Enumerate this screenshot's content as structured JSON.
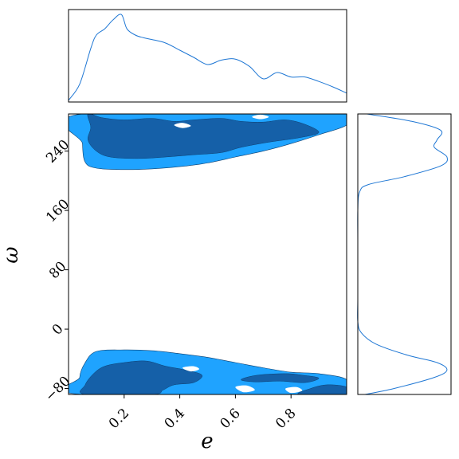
{
  "chart_data": {
    "type": "contour",
    "layout": "corner-plot",
    "xlabel": "e",
    "ylabel": "ω",
    "xlim": [
      0.0,
      1.0
    ],
    "ylim": [
      -88,
      290
    ],
    "xticks": [
      0.2,
      0.4,
      0.6,
      0.8
    ],
    "xtick_labels": [
      "0.2",
      "0.4",
      "0.6",
      "0.8"
    ],
    "yticks": [
      -80,
      0,
      80,
      160,
      240
    ],
    "ytick_labels": [
      "−80",
      "0",
      "80",
      "160",
      "240"
    ],
    "colors": {
      "outer_contour": "#1fa3ff",
      "inner_contour": "#1560a8",
      "marginal_line": "#1f77d4",
      "frame": "#000000"
    },
    "marginal_x": {
      "x": [
        0.0,
        0.04,
        0.08,
        0.1,
        0.13,
        0.16,
        0.19,
        0.21,
        0.24,
        0.27,
        0.3,
        0.35,
        0.4,
        0.45,
        0.5,
        0.55,
        0.6,
        0.65,
        0.7,
        0.75,
        0.8,
        0.85,
        0.9,
        0.95,
        1.0
      ],
      "y": [
        0.02,
        0.2,
        0.6,
        0.75,
        0.82,
        0.92,
        0.98,
        0.82,
        0.75,
        0.72,
        0.7,
        0.66,
        0.58,
        0.5,
        0.42,
        0.47,
        0.48,
        0.4,
        0.26,
        0.33,
        0.28,
        0.28,
        0.23,
        0.17,
        0.1
      ]
    },
    "marginal_y": {
      "y": [
        -88,
        -80,
        -65,
        -55,
        -45,
        -35,
        -20,
        -5,
        10,
        40,
        80,
        120,
        160,
        185,
        195,
        205,
        220,
        232,
        245,
        255,
        268,
        280,
        290
      ],
      "x": [
        0.08,
        0.4,
        0.85,
        0.99,
        0.88,
        0.55,
        0.2,
        0.04,
        0.0,
        0.0,
        0.0,
        0.0,
        0.0,
        0.02,
        0.12,
        0.5,
        0.92,
        0.99,
        0.85,
        0.88,
        0.92,
        0.6,
        0.1
      ]
    },
    "contours": [
      {
        "level": "outer",
        "polygon": [
          [
            0.05,
            290
          ],
          [
            1.0,
            290
          ],
          [
            1.0,
            275
          ],
          [
            0.9,
            262
          ],
          [
            0.8,
            250
          ],
          [
            0.7,
            240
          ],
          [
            0.6,
            232
          ],
          [
            0.5,
            224
          ],
          [
            0.4,
            219
          ],
          [
            0.3,
            216
          ],
          [
            0.2,
            215
          ],
          [
            0.1,
            217
          ],
          [
            0.06,
            225
          ],
          [
            0.05,
            250
          ]
        ]
      },
      {
        "level": "outer",
        "polygon": [
          [
            0.05,
            -88
          ],
          [
            1.0,
            -88
          ],
          [
            1.0,
            -68
          ],
          [
            0.9,
            -60
          ],
          [
            0.8,
            -58
          ],
          [
            0.7,
            -52
          ],
          [
            0.6,
            -45
          ],
          [
            0.5,
            -38
          ],
          [
            0.4,
            -33
          ],
          [
            0.3,
            -29
          ],
          [
            0.2,
            -28
          ],
          [
            0.1,
            -30
          ],
          [
            0.06,
            -45
          ],
          [
            0.04,
            -65
          ]
        ]
      },
      {
        "level": "inner",
        "polygon": [
          [
            0.07,
            290
          ],
          [
            0.12,
            285
          ],
          [
            0.2,
            282
          ],
          [
            0.3,
            284
          ],
          [
            0.38,
            280
          ],
          [
            0.45,
            282
          ],
          [
            0.55,
            284
          ],
          [
            0.62,
            280
          ],
          [
            0.7,
            279
          ],
          [
            0.78,
            282
          ],
          [
            0.85,
            276
          ],
          [
            0.9,
            265
          ],
          [
            0.83,
            258
          ],
          [
            0.72,
            252
          ],
          [
            0.62,
            245
          ],
          [
            0.55,
            238
          ],
          [
            0.45,
            235
          ],
          [
            0.35,
            232
          ],
          [
            0.25,
            230
          ],
          [
            0.15,
            232
          ],
          [
            0.1,
            240
          ],
          [
            0.07,
            255
          ],
          [
            0.08,
            272
          ]
        ]
      },
      {
        "level": "inner",
        "polygon": [
          [
            0.06,
            -88
          ],
          [
            0.3,
            -88
          ],
          [
            0.34,
            -82
          ],
          [
            0.38,
            -75
          ],
          [
            0.45,
            -72
          ],
          [
            0.48,
            -62
          ],
          [
            0.42,
            -55
          ],
          [
            0.35,
            -50
          ],
          [
            0.28,
            -43
          ],
          [
            0.2,
            -45
          ],
          [
            0.13,
            -50
          ],
          [
            0.09,
            -60
          ],
          [
            0.06,
            -75
          ]
        ]
      },
      {
        "level": "inner",
        "polygon": [
          [
            0.62,
            -68
          ],
          [
            0.68,
            -62
          ],
          [
            0.78,
            -60
          ],
          [
            0.84,
            -62
          ],
          [
            0.9,
            -66
          ],
          [
            0.85,
            -72
          ],
          [
            0.76,
            -70
          ],
          [
            0.67,
            -71
          ]
        ]
      },
      {
        "level": "inner",
        "polygon": [
          [
            0.83,
            -88
          ],
          [
            1.0,
            -88
          ],
          [
            1.0,
            -78
          ],
          [
            0.93,
            -75
          ],
          [
            0.87,
            -80
          ]
        ]
      }
    ],
    "holes": [
      [
        [
          0.38,
          275
        ],
        [
          0.41,
          271
        ],
        [
          0.44,
          274
        ],
        [
          0.41,
          278
        ]
      ],
      [
        [
          0.66,
          286
        ],
        [
          0.69,
          283
        ],
        [
          0.72,
          286
        ],
        [
          0.69,
          289
        ]
      ],
      [
        [
          0.41,
          -52
        ],
        [
          0.45,
          -50
        ],
        [
          0.47,
          -54
        ],
        [
          0.44,
          -57
        ]
      ],
      [
        [
          0.78,
          -80
        ],
        [
          0.82,
          -78
        ],
        [
          0.84,
          -83
        ],
        [
          0.8,
          -86
        ]
      ],
      [
        [
          0.6,
          -78
        ],
        [
          0.64,
          -76
        ],
        [
          0.67,
          -82
        ],
        [
          0.63,
          -85
        ]
      ]
    ]
  }
}
